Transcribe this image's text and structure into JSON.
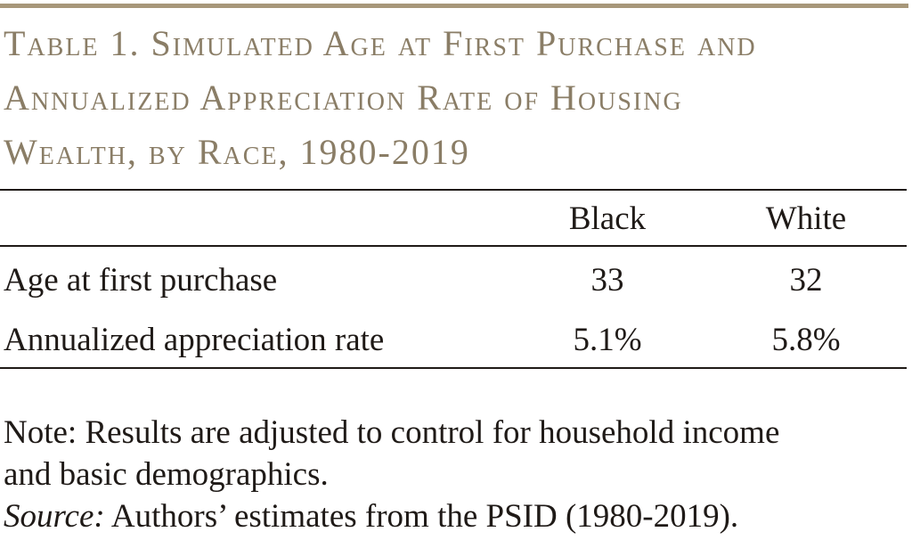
{
  "title": {
    "line1": "Table 1. Simulated Age at First Purchase and",
    "line2": "Annualized Appreciation Rate of Housing",
    "line3": "Wealth, by Race, 1980-2019"
  },
  "table": {
    "columns": [
      "Black",
      "White"
    ],
    "rows": [
      {
        "label": "Age at first purchase",
        "values": [
          "33",
          "32"
        ]
      },
      {
        "label": "Annualized appreciation rate",
        "values": [
          "5.1%",
          "5.8%"
        ]
      }
    ]
  },
  "note": {
    "line1": "Note: Results are adjusted to control for household income",
    "line2": "and basic demographics.",
    "source_label": "Source:",
    "source_text": " Authors’ estimates from the PSID (1980-2019)."
  },
  "colors": {
    "accent": "#a7977a",
    "title": "#8a7d66",
    "text": "#1f1a17"
  }
}
